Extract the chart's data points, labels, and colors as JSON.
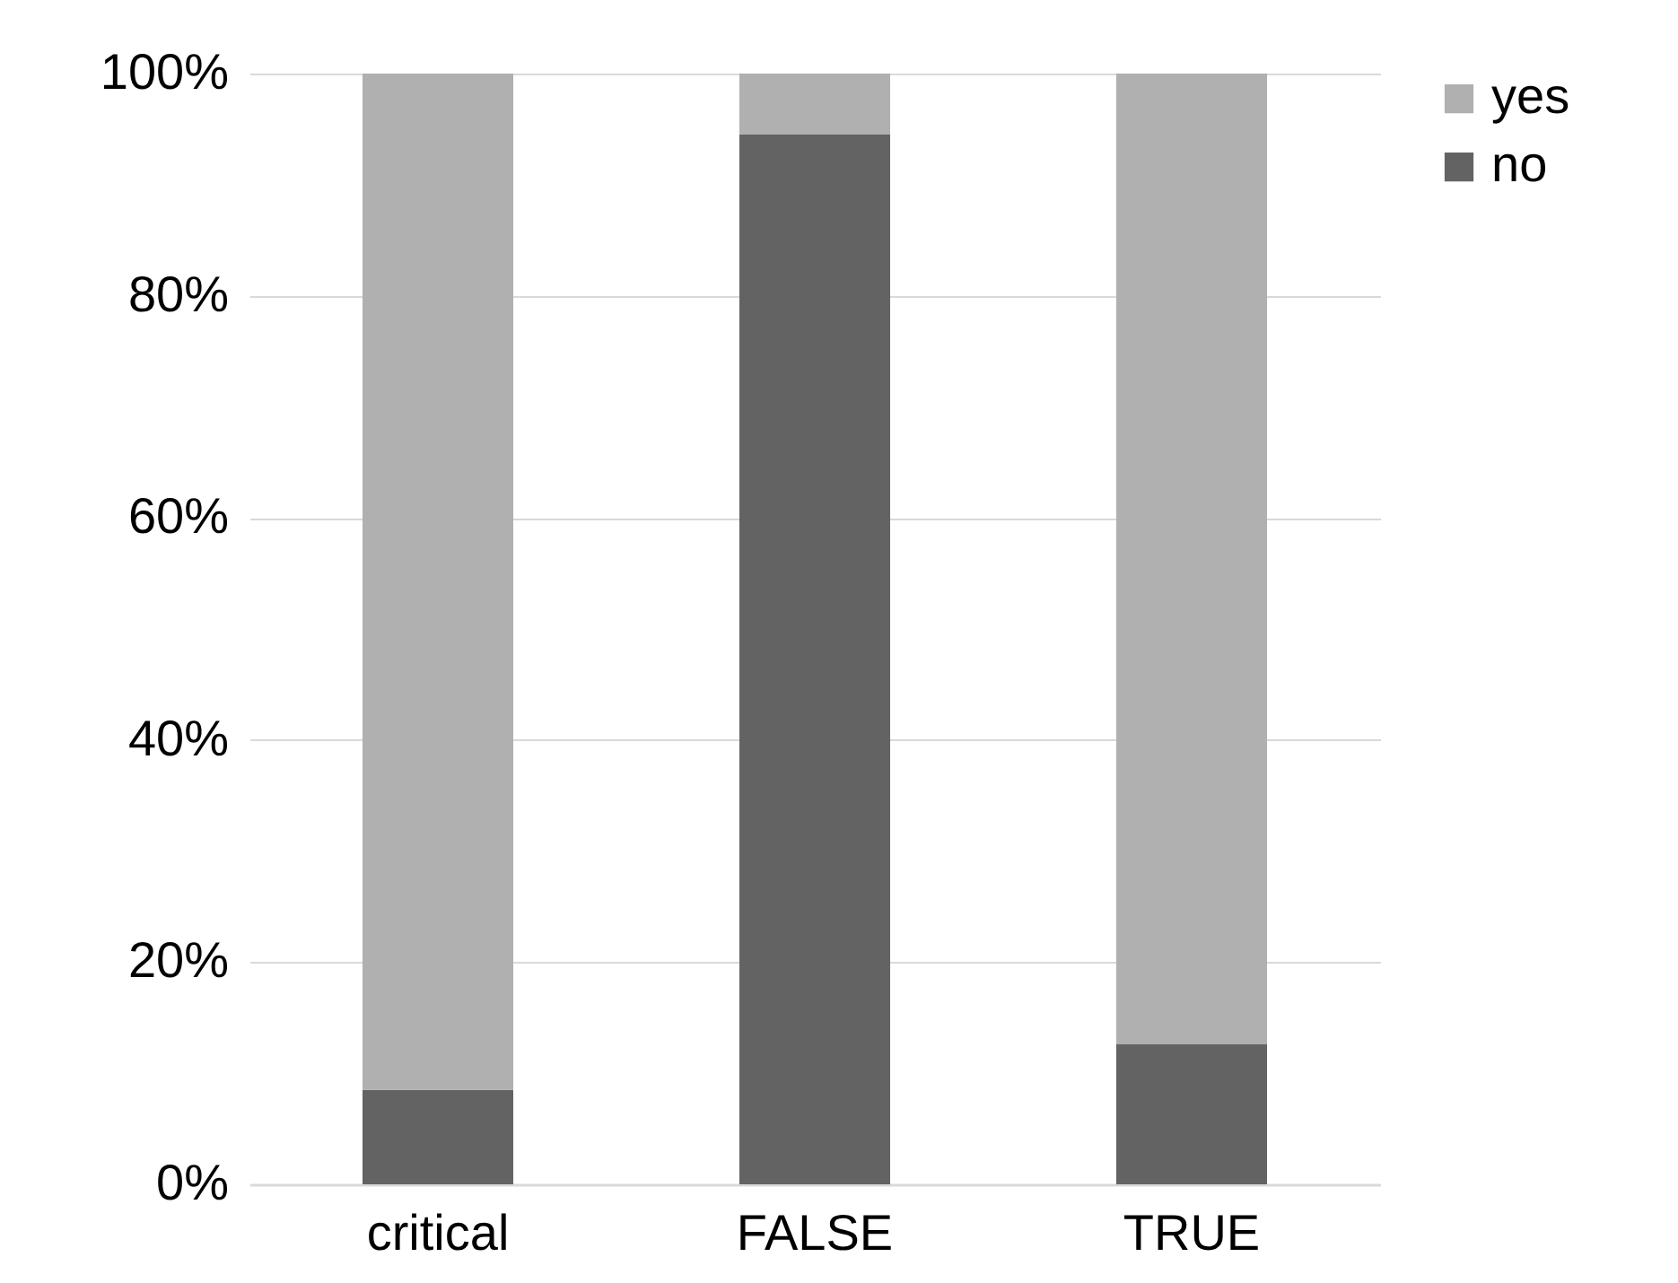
{
  "chart_data": {
    "type": "bar",
    "stacked": true,
    "categories": [
      "critical",
      "FALSE",
      "TRUE"
    ],
    "series": [
      {
        "name": "no",
        "color": "#636363",
        "values": [
          8.5,
          94.5,
          12.6
        ]
      },
      {
        "name": "yes",
        "color": "#b0b0b0",
        "values": [
          91.5,
          5.5,
          87.4
        ]
      }
    ],
    "ylim": [
      0,
      100
    ],
    "yticks": [
      {
        "value": 0,
        "label": "0%"
      },
      {
        "value": 20,
        "label": "20%"
      },
      {
        "value": 40,
        "label": "40%"
      },
      {
        "value": 60,
        "label": "60%"
      },
      {
        "value": 80,
        "label": "80%"
      },
      {
        "value": 100,
        "label": "100%"
      }
    ],
    "grid": "y",
    "legend": "right"
  }
}
